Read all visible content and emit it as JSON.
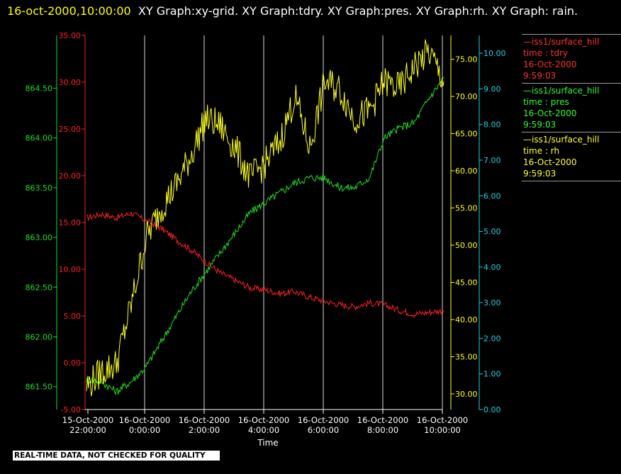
{
  "header": {
    "timestamp": "16-oct-2000,10:00:00",
    "titles": "XY Graph:xy-grid.  XY Graph:tdry.  XY Graph:pres.  XY Graph:rh.  XY Graph: rain."
  },
  "colors": {
    "tdry": "#ff2020",
    "pres": "#20e020",
    "rh": "#ffff20",
    "rain": "#20d0e0",
    "grid": "#d8d8d8",
    "banner_bg": "#ffffff"
  },
  "legend": [
    {
      "station": "iss1/surface_hill",
      "field": "time : tdry",
      "date": "16-Oct-2000",
      "time": "9:59:03",
      "color": "#ff3030"
    },
    {
      "station": "iss1/surface_hill",
      "field": "time : pres",
      "date": "16-Oct-2000",
      "time": "9:59:03",
      "color": "#30ff30"
    },
    {
      "station": "iss1/surface_hill",
      "field": "time : rh",
      "date": "16-Oct-2000",
      "time": "9:59:03",
      "color": "#ffff30"
    }
  ],
  "banner": "REAL-TIME DATA, NOT CHECKED FOR QUALITY",
  "chart_data": {
    "type": "line",
    "xlabel": "Time",
    "x_ticks": [
      {
        "date": "15-Oct-2000",
        "time": "22:00:00"
      },
      {
        "date": "16-Oct-2000",
        "time": "0:00:00"
      },
      {
        "date": "16-Oct-2000",
        "time": "2:00:00"
      },
      {
        "date": "16-Oct-2000",
        "time": "4:00:00"
      },
      {
        "date": "16-Oct-2000",
        "time": "6:00:00"
      },
      {
        "date": "16-Oct-2000",
        "time": "8:00:00"
      },
      {
        "date": "16-Oct-2000",
        "time": "10:00:00"
      }
    ],
    "xlim": [
      "15-Oct-2000 21:57",
      "16-Oct-2000 10:00"
    ],
    "grid": "vertical",
    "axes": {
      "tdry": {
        "ticks": [
          "35.00",
          "30.00",
          "25.00",
          "20.00",
          "15.00",
          "10.00",
          "5.00",
          "0.00",
          "-5.00"
        ],
        "ylim": [
          -5,
          35
        ],
        "color": "#ff2020"
      },
      "pres": {
        "ticks": [
          "864.50",
          "864.00",
          "863.50",
          "863.00",
          "862.50",
          "862.00",
          "861.50"
        ],
        "ylim": [
          861.27,
          865.03
        ],
        "color": "#20e020"
      },
      "rh": {
        "ticks": [
          "75.00",
          "70.00",
          "65.00",
          "60.00",
          "55.00",
          "50.00",
          "45.00",
          "40.00",
          "35.00",
          "30.00"
        ],
        "ylim": [
          27.9,
          78.2
        ],
        "color": "#ffff20"
      },
      "rain": {
        "ticks": [
          "10.00",
          "9.00",
          "8.00",
          "7.00",
          "6.00",
          "5.00",
          "4.00",
          "3.00",
          "2.00",
          "1.00",
          "0.00"
        ],
        "ylim": [
          0,
          10.5
        ],
        "color": "#20d0e0"
      }
    },
    "series": [
      {
        "name": "tdry",
        "x_hours": [
          0,
          0.5,
          1,
          1.5,
          2,
          2.5,
          3,
          3.5,
          4,
          4.5,
          5,
          5.5,
          6,
          6.5,
          7,
          7.5,
          8,
          8.5,
          9,
          9.5,
          10,
          10.5,
          11,
          11.5,
          12
        ],
        "values": [
          15.5,
          15.9,
          15.5,
          16.0,
          15.2,
          14.4,
          13.2,
          12.1,
          10.8,
          9.6,
          8.8,
          8.0,
          7.8,
          7.4,
          7.6,
          7.0,
          6.6,
          6.2,
          6.0,
          6.4,
          6.2,
          5.6,
          5.2,
          5.4,
          5.6
        ]
      },
      {
        "name": "pres",
        "x_hours": [
          0,
          0.5,
          1,
          1.5,
          2,
          2.5,
          3,
          3.5,
          4,
          4.5,
          5,
          5.5,
          6,
          6.5,
          7,
          7.5,
          8,
          8.5,
          9,
          9.5,
          10,
          10.5,
          11,
          11.5,
          12
        ],
        "values": [
          861.58,
          861.55,
          861.45,
          861.55,
          861.7,
          861.95,
          862.2,
          862.45,
          862.65,
          862.85,
          863.05,
          863.25,
          863.35,
          863.45,
          863.55,
          863.6,
          863.6,
          863.5,
          863.5,
          863.6,
          864.0,
          864.1,
          864.15,
          864.4,
          864.6
        ]
      },
      {
        "name": "rh",
        "x_hours": [
          0,
          0.5,
          1,
          1.5,
          2,
          2.5,
          3,
          3.5,
          4,
          4.5,
          5,
          5.5,
          6,
          6.5,
          7,
          7.5,
          8,
          8.5,
          9,
          9.5,
          10,
          10.5,
          11,
          11.5,
          12
        ],
        "values": [
          31,
          33,
          34,
          42,
          51,
          55,
          58,
          62,
          67,
          66,
          63,
          59,
          61,
          64,
          70,
          63,
          72,
          71,
          67,
          68,
          72,
          71,
          74,
          76,
          72
        ]
      },
      {
        "name": "rain",
        "x_hours": [],
        "values": []
      }
    ]
  }
}
